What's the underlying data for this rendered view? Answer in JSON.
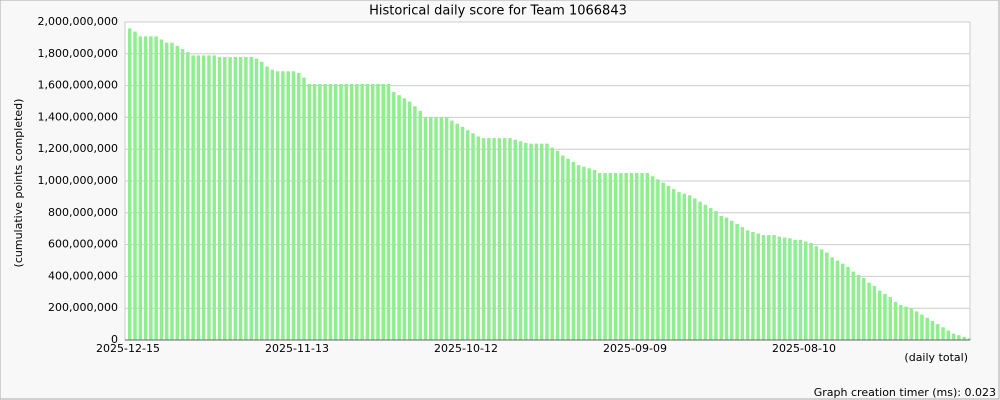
{
  "chart_data": {
    "type": "bar",
    "title": "Historical daily score for Team 1066843",
    "ylabel": "(cumulative points completed)",
    "xlabel": "(daily total)",
    "footer": "Graph creation timer (ms): 0.023",
    "color": "#90ee90",
    "grid": true,
    "categories": [
      "2025-12-15",
      null,
      null,
      null,
      null,
      null,
      null,
      null,
      null,
      null,
      null,
      null,
      null,
      null,
      null,
      null,
      null,
      null,
      null,
      null,
      null,
      null,
      null,
      null,
      null,
      null,
      null,
      null,
      null,
      null,
      null,
      null,
      "2025-11-13",
      null,
      null,
      null,
      null,
      null,
      null,
      null,
      null,
      null,
      null,
      null,
      null,
      null,
      null,
      null,
      null,
      null,
      null,
      null,
      null,
      null,
      null,
      null,
      null,
      null,
      null,
      null,
      null,
      null,
      null,
      null,
      "2025-10-12",
      null,
      null,
      null,
      null,
      null,
      null,
      null,
      null,
      null,
      null,
      null,
      null,
      null,
      null,
      null,
      null,
      null,
      null,
      null,
      null,
      null,
      null,
      null,
      null,
      null,
      null,
      null,
      null,
      null,
      null,
      null,
      "2025-09-09",
      null,
      null,
      null,
      null,
      null,
      null,
      null,
      null,
      null,
      null,
      null,
      null,
      null,
      null,
      null,
      null,
      null,
      null,
      null,
      null,
      null,
      null,
      null,
      null,
      null,
      null,
      null,
      null,
      null,
      null,
      null,
      "2025-08-10",
      null,
      null,
      null,
      null,
      null,
      null,
      null,
      null,
      null,
      null,
      null,
      null,
      null,
      null,
      null,
      null,
      null,
      null,
      null,
      null,
      null,
      null,
      null,
      null,
      null,
      null,
      null,
      null,
      null,
      null,
      null
    ],
    "values": [
      1960000000,
      1940000000,
      1910000000,
      1910000000,
      1910000000,
      1910000000,
      1890000000,
      1870000000,
      1870000000,
      1850000000,
      1830000000,
      1810000000,
      1790000000,
      1790000000,
      1790000000,
      1790000000,
      1790000000,
      1780000000,
      1780000000,
      1780000000,
      1780000000,
      1780000000,
      1780000000,
      1780000000,
      1770000000,
      1750000000,
      1720000000,
      1700000000,
      1690000000,
      1690000000,
      1690000000,
      1690000000,
      1680000000,
      1650000000,
      1610000000,
      1610000000,
      1610000000,
      1610000000,
      1610000000,
      1610000000,
      1610000000,
      1610000000,
      1610000000,
      1610000000,
      1610000000,
      1610000000,
      1610000000,
      1610000000,
      1610000000,
      1610000000,
      1560000000,
      1540000000,
      1520000000,
      1500000000,
      1470000000,
      1440000000,
      1400000000,
      1400000000,
      1400000000,
      1400000000,
      1400000000,
      1380000000,
      1360000000,
      1340000000,
      1320000000,
      1300000000,
      1280000000,
      1270000000,
      1270000000,
      1270000000,
      1270000000,
      1270000000,
      1270000000,
      1260000000,
      1250000000,
      1240000000,
      1235000000,
      1235000000,
      1235000000,
      1235000000,
      1210000000,
      1190000000,
      1160000000,
      1140000000,
      1120000000,
      1100000000,
      1090000000,
      1080000000,
      1070000000,
      1050000000,
      1050000000,
      1050000000,
      1050000000,
      1050000000,
      1050000000,
      1050000000,
      1050000000,
      1050000000,
      1050000000,
      1030000000,
      1010000000,
      990000000,
      970000000,
      950000000,
      930000000,
      920000000,
      910000000,
      890000000,
      870000000,
      850000000,
      830000000,
      810000000,
      780000000,
      770000000,
      750000000,
      730000000,
      710000000,
      690000000,
      680000000,
      670000000,
      660000000,
      660000000,
      660000000,
      650000000,
      645000000,
      640000000,
      630000000,
      630000000,
      620000000,
      610000000,
      590000000,
      570000000,
      550000000,
      520000000,
      500000000,
      480000000,
      460000000,
      430000000,
      410000000,
      390000000,
      360000000,
      340000000,
      310000000,
      290000000,
      270000000,
      240000000,
      220000000,
      210000000,
      200000000,
      180000000,
      160000000,
      140000000,
      120000000,
      100000000,
      80000000,
      60000000,
      40000000,
      30000000,
      20000000,
      10000000
    ],
    "ylim": [
      0,
      2000000000
    ],
    "yticks": [
      0,
      {
        "value": 200000000,
        "label": "200,000,000"
      },
      {
        "value": 400000000,
        "label": "400,000,000"
      },
      {
        "value": 600000000,
        "label": "600,000,000"
      },
      {
        "value": 800000000,
        "label": "800,000,000"
      },
      {
        "value": 1000000000,
        "label": "1,000,000,000"
      },
      {
        "value": 1200000000,
        "label": "1,200,000,000"
      },
      {
        "value": 1400000000,
        "label": "1,400,000,000"
      },
      {
        "value": 1600000000,
        "label": "1,600,000,000"
      },
      {
        "value": 1800000000,
        "label": "1,800,000,000"
      },
      {
        "value": 2000000000,
        "label": "2,000,000,000"
      }
    ]
  }
}
